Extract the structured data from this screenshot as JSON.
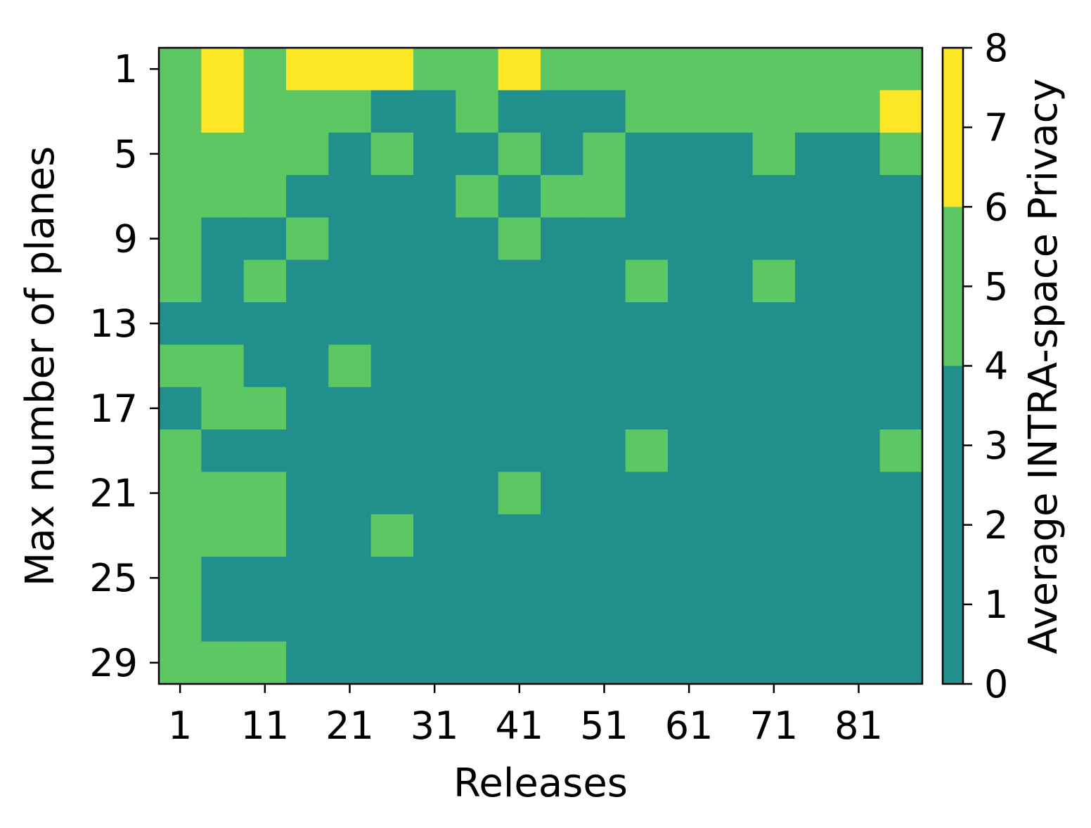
{
  "chart_data": {
    "type": "heatmap",
    "title": "",
    "xlabel": "Releases",
    "ylabel": "Max number of planes",
    "colorbar_label": "Average INTRA-space Privacy",
    "x_tick_labels": [
      "1",
      "11",
      "21",
      "31",
      "41",
      "51",
      "61",
      "71",
      "81"
    ],
    "y_tick_labels": [
      "1",
      "5",
      "9",
      "13",
      "17",
      "21",
      "25",
      "29"
    ],
    "colorbar_ticks": [
      "0",
      "1",
      "2",
      "3",
      "4",
      "5",
      "6",
      "7",
      "8"
    ],
    "colorbar_range": [
      0,
      8
    ],
    "color_bins": [
      {
        "from": 0,
        "to": 4,
        "color": "#21908d"
      },
      {
        "from": 4,
        "to": 6,
        "color": "#5dc863"
      },
      {
        "from": 6,
        "to": 8,
        "color": "#fde725"
      }
    ],
    "column_releases": [
      1,
      6,
      11,
      16,
      21,
      26,
      31,
      36,
      41,
      46,
      51,
      56,
      61,
      66,
      71,
      76,
      81,
      86
    ],
    "row_max_planes": [
      1,
      3,
      5,
      7,
      9,
      11,
      13,
      15,
      17,
      19,
      21,
      23,
      25,
      27,
      29
    ],
    "levels": [
      [
        1,
        2,
        1,
        2,
        2,
        2,
        1,
        1,
        2,
        1,
        1,
        1,
        1,
        1,
        1,
        1,
        1,
        1
      ],
      [
        1,
        2,
        1,
        1,
        1,
        0,
        0,
        1,
        0,
        0,
        0,
        1,
        1,
        1,
        1,
        1,
        1,
        2
      ],
      [
        1,
        1,
        1,
        1,
        0,
        1,
        0,
        0,
        1,
        0,
        1,
        0,
        0,
        0,
        1,
        0,
        0,
        1
      ],
      [
        1,
        1,
        1,
        0,
        0,
        0,
        0,
        1,
        0,
        1,
        1,
        0,
        0,
        0,
        0,
        0,
        0,
        0
      ],
      [
        1,
        0,
        0,
        1,
        0,
        0,
        0,
        0,
        1,
        0,
        0,
        0,
        0,
        0,
        0,
        0,
        0,
        0
      ],
      [
        1,
        0,
        1,
        0,
        0,
        0,
        0,
        0,
        0,
        0,
        0,
        1,
        0,
        0,
        1,
        0,
        0,
        0
      ],
      [
        0,
        0,
        0,
        0,
        0,
        0,
        0,
        0,
        0,
        0,
        0,
        0,
        0,
        0,
        0,
        0,
        0,
        0
      ],
      [
        1,
        1,
        0,
        0,
        1,
        0,
        0,
        0,
        0,
        0,
        0,
        0,
        0,
        0,
        0,
        0,
        0,
        0
      ],
      [
        0,
        1,
        1,
        0,
        0,
        0,
        0,
        0,
        0,
        0,
        0,
        0,
        0,
        0,
        0,
        0,
        0,
        0
      ],
      [
        1,
        0,
        0,
        0,
        0,
        0,
        0,
        0,
        0,
        0,
        0,
        1,
        0,
        0,
        0,
        0,
        0,
        1
      ],
      [
        1,
        1,
        1,
        0,
        0,
        0,
        0,
        0,
        1,
        0,
        0,
        0,
        0,
        0,
        0,
        0,
        0,
        0
      ],
      [
        1,
        1,
        1,
        0,
        0,
        1,
        0,
        0,
        0,
        0,
        0,
        0,
        0,
        0,
        0,
        0,
        0,
        0
      ],
      [
        1,
        0,
        0,
        0,
        0,
        0,
        0,
        0,
        0,
        0,
        0,
        0,
        0,
        0,
        0,
        0,
        0,
        0
      ],
      [
        1,
        0,
        0,
        0,
        0,
        0,
        0,
        0,
        0,
        0,
        0,
        0,
        0,
        0,
        0,
        0,
        0,
        0
      ],
      [
        1,
        1,
        1,
        0,
        0,
        0,
        0,
        0,
        0,
        0,
        0,
        0,
        0,
        0,
        0,
        0,
        0,
        0
      ]
    ],
    "grid": false
  }
}
